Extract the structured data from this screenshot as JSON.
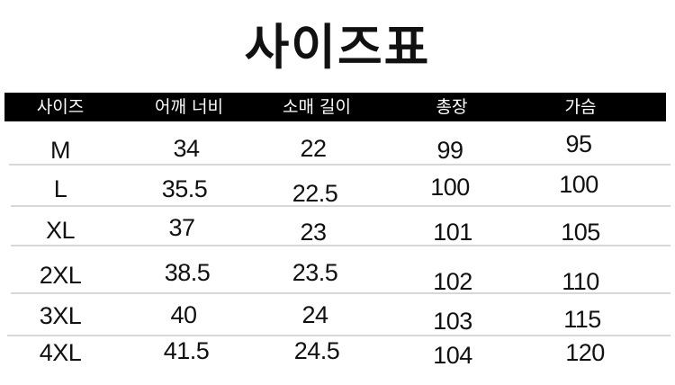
{
  "title": "사이즈표",
  "table": {
    "headers": [
      "사이즈",
      "어깨 너비",
      "소매 길이",
      "총장",
      "가슴"
    ],
    "rows": [
      [
        "M",
        "34",
        "22",
        "99",
        "95"
      ],
      [
        "L",
        "35.5",
        "22.5",
        "100",
        "100"
      ],
      [
        "XL",
        "37",
        "23",
        "101",
        "105"
      ],
      [
        "2XL",
        "38.5",
        "23.5",
        "102",
        "110"
      ],
      [
        "3XL",
        "40",
        "24",
        "103",
        "115"
      ],
      [
        "4XL",
        "41.5",
        "24.5",
        "104",
        "120"
      ]
    ]
  },
  "colors": {
    "header_bg": "#000000",
    "header_text": "#ffffff",
    "divider": "#d8d8d8"
  }
}
